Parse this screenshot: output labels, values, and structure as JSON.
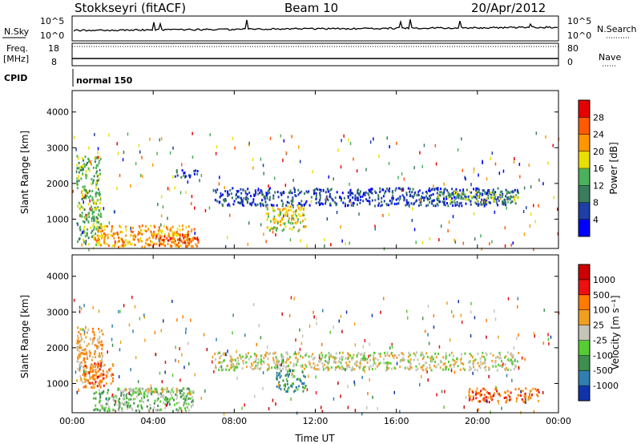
{
  "header": {
    "station": "Stokkseyri (fitACF)",
    "beam": "Beam 10",
    "date": "20/Apr/2012"
  },
  "status_panel": {
    "nsky_label": "N.Sky",
    "nsky_ticks": [
      "10^5",
      "10^0"
    ],
    "nsearch_label": "N.Search",
    "nsearch_ticks": [
      "10^5",
      "10^0"
    ],
    "freq_label": "Freq.",
    "freq_unit": "[MHz]",
    "freq_ticks": [
      "18",
      "8"
    ],
    "nave_label": "Nave",
    "nave_ticks": [
      "80",
      "0"
    ],
    "cpid_label": "CPID",
    "cpid_value": "normal 150"
  },
  "chart_data": [
    {
      "type": "heatmap",
      "parameter": "Power",
      "ylabel": "Slant Range [km]",
      "ylim": [
        180,
        4600
      ],
      "yticks": [
        "1000",
        "2000",
        "3000",
        "4000"
      ],
      "xlim": [
        0,
        24
      ],
      "xticks": [
        "00:00",
        "04:00",
        "08:00",
        "12:00",
        "16:00",
        "20:00",
        "00:00"
      ],
      "colorbar": {
        "label": "Power [dB]",
        "ticks": [
          "4",
          "8",
          "12",
          "16",
          "20",
          "24",
          "28"
        ],
        "colors": [
          "#0000ff",
          "#1d3fa6",
          "#3a7d5e",
          "#49b25a",
          "#e8e000",
          "#ff9600",
          "#ff5a00",
          "#e60000"
        ]
      },
      "regions": [
        {
          "t": [
            0.2,
            1.4
          ],
          "r": [
            300,
            2800
          ],
          "level": 3
        },
        {
          "t": [
            1.0,
            6.0
          ],
          "r": [
            250,
            850
          ],
          "level": 5
        },
        {
          "t": [
            4.0,
            6.2
          ],
          "r": [
            250,
            600
          ],
          "level": 6
        },
        {
          "t": [
            5.0,
            6.2
          ],
          "r": [
            2200,
            2400
          ],
          "level": 1
        },
        {
          "t": [
            7.0,
            22.0
          ],
          "r": [
            1400,
            1900
          ],
          "level": 1
        },
        {
          "t": [
            9.5,
            11.5
          ],
          "r": [
            700,
            1400
          ],
          "level": 4
        },
        {
          "t": [
            18.0,
            22.0
          ],
          "r": [
            1500,
            1800
          ],
          "level": 3
        }
      ]
    },
    {
      "type": "heatmap",
      "parameter": "Velocity",
      "ylabel": "Slant Range [km]",
      "ylim": [
        180,
        4600
      ],
      "yticks": [
        "1000",
        "2000",
        "3000",
        "4000"
      ],
      "xlim": [
        0,
        24
      ],
      "xticks": [
        "00:00",
        "04:00",
        "08:00",
        "12:00",
        "16:00",
        "20:00",
        "00:00"
      ],
      "xlabel": "Time UT",
      "colorbar": {
        "label": "Velocity [m s⁻¹]",
        "ticks": [
          "1000",
          "500",
          "100",
          "25",
          "-25",
          "-100",
          "-500",
          "-1000"
        ],
        "colors": [
          "#1133aa",
          "#2f7fb0",
          "#3f8f4f",
          "#55cc33",
          "#c4c4b8",
          "#f0a020",
          "#ff7a00",
          "#ee1010",
          "#cc0000"
        ]
      },
      "regions": [
        {
          "t": [
            0.2,
            1.5
          ],
          "r": [
            1000,
            2600
          ],
          "level": 5
        },
        {
          "t": [
            0.5,
            2.0
          ],
          "r": [
            900,
            1600
          ],
          "level": 6
        },
        {
          "t": [
            1.0,
            6.0
          ],
          "r": [
            250,
            900
          ],
          "level": 3
        },
        {
          "t": [
            2.5,
            6.0
          ],
          "r": [
            700,
            900
          ],
          "level": 4
        },
        {
          "t": [
            7.0,
            22.0
          ],
          "r": [
            1400,
            1900
          ],
          "level": 4
        },
        {
          "t": [
            10.0,
            11.5
          ],
          "r": [
            800,
            1400
          ],
          "level": 2
        },
        {
          "t": [
            19.5,
            23.0
          ],
          "r": [
            500,
            900
          ],
          "level": 6
        }
      ]
    }
  ]
}
